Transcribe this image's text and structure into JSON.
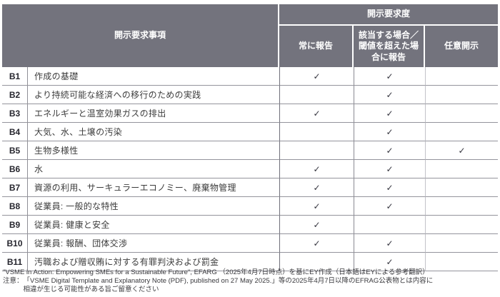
{
  "table": {
    "header": {
      "items_col": "開示要求事項",
      "group_col": "開示要求度",
      "sub_cols": [
        "常に報告",
        "該当する場合／閾値を超えた場合に報告",
        "任意開示"
      ]
    },
    "checkmark": "✓",
    "rows": [
      {
        "id": "B1",
        "label": "作成の基礎",
        "checks": [
          1,
          1,
          0
        ]
      },
      {
        "id": "B2",
        "label": "より持続可能な経済への移行のための実践",
        "checks": [
          0,
          1,
          0
        ]
      },
      {
        "id": "B3",
        "label": "エネルギーと温室効果ガスの排出",
        "checks": [
          1,
          1,
          0
        ]
      },
      {
        "id": "B4",
        "label": "大気、水、土壌の汚染",
        "checks": [
          0,
          1,
          0
        ]
      },
      {
        "id": "B5",
        "label": "生物多様性",
        "checks": [
          0,
          1,
          1
        ]
      },
      {
        "id": "B6",
        "label": "水",
        "checks": [
          1,
          1,
          0
        ]
      },
      {
        "id": "B7",
        "label": "資源の利用、サーキュラーエコノミー、廃棄物管理",
        "checks": [
          1,
          1,
          0
        ]
      },
      {
        "id": "B8",
        "label": "従業員: 一般的な特性",
        "checks": [
          1,
          1,
          0
        ]
      },
      {
        "id": "B9",
        "label": "従業員: 健康と安全",
        "checks": [
          1,
          0,
          0
        ]
      },
      {
        "id": "B10",
        "label": "従業員: 報酬、団体交渉",
        "checks": [
          1,
          1,
          0
        ]
      },
      {
        "id": "B11",
        "label": "汚職および贈収賄に対する有罪判決および罰金",
        "checks": [
          0,
          1,
          0
        ]
      }
    ]
  },
  "footer": {
    "source": "\"VSME in Action: Empowering SMEs for a Sustainable Future\", EFARG （2025年4月7日時点）を基にEY作成（日本語はEYによる参考翻訳）",
    "note_label": "注意：",
    "note_line1": "「VSME Digital Template and Explanatory Note (PDF), published on 27 May 2025.」等の2025年4月7日以降のEFRAG公表物とは内容に",
    "note_line2": "相違が生じる可能性がある旨ご留意ください"
  },
  "colors": {
    "header_bg": "#73737d",
    "header_text": "#ffffff",
    "checkmark_color": "#34343e",
    "row_border": "#94949c"
  }
}
